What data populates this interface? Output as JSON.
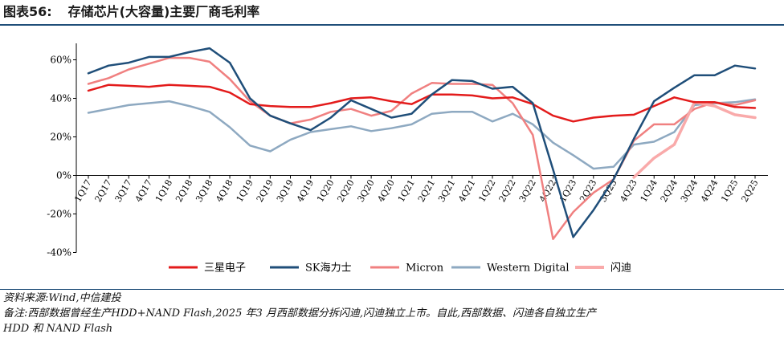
{
  "title": {
    "figure_no": "图表56:",
    "text": "存储芯片(大容量)主要厂商毛利率"
  },
  "chart_data": {
    "type": "line",
    "title": "存储芯片(大容量)主要厂商毛利率",
    "xlabel": "",
    "ylabel": "",
    "ylim": [
      -40,
      70
    ],
    "yticks": [
      60,
      40,
      20,
      0,
      -20,
      -40
    ],
    "ytick_labels": [
      "60%",
      "40%",
      "20%",
      "0%",
      "-20%",
      "-40%"
    ],
    "categories": [
      "1Q17",
      "2Q17",
      "3Q17",
      "4Q17",
      "1Q18",
      "2Q18",
      "3Q18",
      "4Q18",
      "1Q19",
      "2Q19",
      "3Q19",
      "4Q19",
      "1Q20",
      "2Q20",
      "3Q20",
      "4Q20",
      "1Q21",
      "2Q21",
      "3Q21",
      "4Q21",
      "1Q22",
      "2Q22",
      "3Q22",
      "4Q22",
      "1Q23",
      "2Q23",
      "3Q23",
      "4Q23",
      "1Q24",
      "2Q24",
      "3Q24",
      "4Q24",
      "1Q25",
      "2Q25"
    ],
    "legend_position": "bottom",
    "series": [
      {
        "name": "三星电子",
        "color": "#e31b1b",
        "width": 2.5,
        "values": [
          44,
          47,
          46.5,
          46,
          47,
          46.5,
          46,
          43,
          37,
          36,
          35.5,
          35.5,
          37.5,
          40,
          40.5,
          38.5,
          37,
          42,
          42,
          41.5,
          40,
          40.5,
          37,
          31,
          28,
          30,
          31,
          31.5,
          36,
          40.5,
          38,
          38,
          35.5,
          35
        ]
      },
      {
        "name": "SK海力士",
        "color": "#1f4e79",
        "width": 2.5,
        "values": [
          53,
          57,
          58.5,
          61.5,
          61.5,
          64,
          66,
          58.5,
          40,
          31,
          27,
          23.5,
          30,
          39,
          34.5,
          30,
          32,
          42,
          49.5,
          49,
          45,
          46,
          37.5,
          3,
          -32,
          -18,
          -2,
          19,
          38.5,
          45.5,
          52,
          52,
          57,
          55.5
        ]
      },
      {
        "name": "Micron",
        "color": "#f08080",
        "width": 2.5,
        "values": [
          47.5,
          50.5,
          55,
          58,
          61,
          61,
          59,
          50,
          38.5,
          31,
          27,
          29,
          33,
          34.5,
          31,
          33.5,
          42.5,
          48,
          47.5,
          47.5,
          47,
          37.5,
          21,
          -33,
          -19,
          -9,
          -2,
          18,
          26.5,
          26.5,
          34.5,
          38,
          36.5,
          39
        ]
      },
      {
        "name": "Western Digital",
        "color": "#8ea9c1",
        "width": 2.5,
        "values": [
          32.5,
          34.5,
          36.5,
          37.5,
          38.5,
          36,
          33,
          25,
          15.5,
          12.5,
          18.5,
          22.5,
          24,
          25.5,
          23,
          24.5,
          26.5,
          32,
          33,
          33,
          28,
          32,
          26.5,
          17,
          10.5,
          3.5,
          4.5,
          16,
          17.5,
          22.5,
          36.5,
          37.5,
          38,
          39.5
        ]
      },
      {
        "name": "闪迪",
        "color": "#f9aaaa",
        "width": 3.5,
        "values": [
          null,
          null,
          null,
          null,
          null,
          null,
          null,
          null,
          null,
          null,
          null,
          null,
          null,
          null,
          null,
          null,
          null,
          null,
          null,
          null,
          null,
          null,
          null,
          null,
          null,
          null,
          null,
          -1,
          9,
          16,
          38,
          36,
          31.5,
          30
        ]
      }
    ]
  },
  "notes": {
    "source": "资料来源:Wind,中信建投",
    "remark_line1": "备注:西部数据曾经生产HDD+NAND Flash,2025 年3 月西部数据分拆闪迪,闪迪独立上市。自此,西部数据、闪迪各自独立生产",
    "remark_line2": "HDD 和 NAND Flash"
  }
}
